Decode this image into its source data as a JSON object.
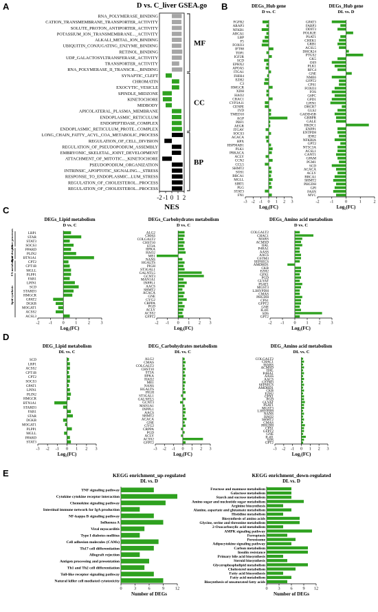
{
  "colors": {
    "green": "#2ea11f",
    "gray": "#a6a6a6",
    "black": "#000000",
    "axis": "#000000"
  },
  "panel_letters": {
    "A": "A",
    "B": "B",
    "C": "C",
    "D": "D",
    "E": "E"
  },
  "chart_data": [
    {
      "id": "A",
      "type": "bar",
      "orientation": "horizontal",
      "title": "D vs. C_liver GSEA.go",
      "xlabel": "NES",
      "xlim": [
        -2,
        2
      ],
      "xticks": [
        "-2",
        "-1",
        "0",
        "1",
        "2"
      ],
      "categories": [
        "RNA_POLYMERASE_BINDING",
        "CATION_TRANSMEMBRANE_TRANSPORTER_ACTIVITY",
        "SOLUTE_PROTON_ANTIPORTER_ACTIVITY",
        "POTASSIUM_ION_TRANSMEMBRANE..._ACTIVITY",
        "ALKALI_METAL_ION_BINDING",
        "UBIQUITIN_CONJUGATING_ENZYME_BINDING",
        "RETINOL_BINDING",
        "UDP_GALACTOSYLTRANSFERASE_ACTIVITY",
        "TRANSPORTER_ACTIVITY",
        "RNA_POLYMERASE_II_TRANSCR..._BINDING",
        "SYNAPTIC_CLEFT",
        "CHROMATIN",
        "EXOCYTIC_VESICLE",
        "SPINDLE_MIDZONE",
        "KINETOCHORE",
        "MIDBODY",
        "APICOLATERAL_PLASMA_MEMBRANE",
        "ENDOPLASMIC_RETICULUM",
        "ENDOPEPTIDASE_COMPLEX",
        "ENDOPLASMIC_RETICULUM_PROTE...COMPLEX",
        "LONG_CHAIN_FATTY_ACYL_COA_METABOLIC_PROCESS",
        "REGULATION_OF_CELL_DIVISION",
        "REGULATION_OF_PSEUDOPODIUM_ASSEMBLY",
        "EMBRYONIC_SKELETAL_JOINT_DEVELOPMENT",
        "ATTACHMENT_OF_MITOTIC..._KINETOCHORE",
        "PSEUDOPODIUM_ORGANIZATION",
        "INTRINSIC_APOPTOTIC_SIGNALING..._STRESS",
        "RESPONSE_TO_ENDOPLASMIC...LUM_STRESS",
        "REGULATION_OF_CHOLESTEROL...PROCESS",
        "REGULATION_OF_CHOLESTEROL...PROCESS"
      ],
      "values": [
        1.6,
        1.55,
        1.6,
        1.58,
        1.6,
        1.55,
        1.7,
        1.62,
        1.2,
        1.7,
        -1.0,
        1.2,
        1.2,
        -1.5,
        -1.45,
        -1.0,
        1.55,
        1.55,
        1.6,
        1.65,
        1.8,
        -1.2,
        1.55,
        1.5,
        -1.55,
        1.75,
        1.7,
        1.75,
        1.75,
        1.7
      ],
      "colors": [
        "gray",
        "gray",
        "gray",
        "gray",
        "gray",
        "gray",
        "gray",
        "gray",
        "gray",
        "gray",
        "green",
        "green",
        "green",
        "green",
        "green",
        "green",
        "green",
        "green",
        "green",
        "green",
        "black",
        "black",
        "black",
        "black",
        "black",
        "black",
        "black",
        "black",
        "black",
        "black"
      ],
      "groups": [
        {
          "label": "MF",
          "from": 0,
          "to": 9
        },
        {
          "label": "CC",
          "from": 10,
          "to": 19
        },
        {
          "label": "BP",
          "from": 20,
          "to": 29
        }
      ]
    },
    {
      "id": "B1",
      "type": "bar",
      "orientation": "horizontal",
      "title": "DEGs_Hub gene",
      "subtitle": "D vs. C",
      "xlabel": "Log₂(FC)",
      "xlim": [
        -3,
        3
      ],
      "xticks": [
        "-3",
        "-2",
        "-1",
        "0",
        "1",
        "2",
        "3"
      ],
      "categories": [
        "FGFR2",
        "ARAP3",
        "NFKB1",
        "ABCA1",
        "LBP",
        "F5",
        "FOXO3",
        "IFT88",
        "TOP1",
        "IGF2R",
        "SCD",
        "EPHX2",
        "APOA5",
        "ITGA1",
        "FHIH4",
        "EZH2",
        "C3",
        "HMGCR",
        "XDH",
        "HAO2",
        "CRAC1",
        "CYP3A11",
        "CENPE",
        "IYD",
        "TMED10",
        "AGP",
        "PBF1",
        "AEGR",
        "ITGAV",
        "SOCS3",
        "ACACA",
        "HPX",
        "HSP90AB1",
        "PLK1",
        "PRKACA",
        "ACLY",
        "CCN2",
        "CCL5",
        "SHMT2",
        "SOS1",
        "BRCA1",
        "MGLL",
        "SIRT1",
        "PLG",
        "STAT3",
        "FN1"
      ],
      "values": [
        -0.8,
        -0.3,
        -0.9,
        -0.3,
        -0.5,
        -0.8,
        -0.9,
        0.6,
        -0.3,
        0.4,
        -0.6,
        -0.3,
        -0.4,
        0.3,
        -0.2,
        -0.5,
        -0.6,
        0.5,
        -0.3,
        -0.3,
        0.5,
        -0.5,
        -0.5,
        0.3,
        0.3,
        2.4,
        0.2,
        0.2,
        -0.4,
        0.3,
        -0.4,
        -0.3,
        0.3,
        0.5,
        0.4,
        -0.4,
        0.5,
        -0.5,
        0.3,
        0.4,
        0.3,
        0.5,
        0.3,
        0.4,
        -0.5,
        0.4
      ]
    },
    {
      "id": "B2",
      "type": "bar",
      "orientation": "horizontal",
      "title": "DEGs_Hub gene",
      "subtitle": "DL vs. D",
      "xlabel": "Log₂(FC)",
      "xlim": [
        -2,
        2
      ],
      "xticks": [
        "-2",
        "-1",
        "0",
        "1",
        "2"
      ],
      "categories": [
        "GPAT3",
        "FABP3",
        "DDIT3",
        "POLR2E",
        "PSAT1",
        "CHEK1",
        "GRB1",
        "ACSL5",
        "DHCR24",
        "PTGS2",
        "GK5",
        "OS9",
        "PLK1",
        "RFC4",
        "GNE",
        "NME6",
        "GFPT2",
        "CPS1",
        "FOXO3",
        "FOS",
        "G6PC",
        "GPD1",
        "LPIN1",
        "DHCR7",
        "GLS2",
        "GADD45B",
        "GRBPR",
        "GALE",
        "HKDC1",
        "ENPP1",
        "ENTPD8",
        "IDH2",
        "NFKBIA",
        "GPT2",
        "NT5C3A",
        "ACSL1",
        "CANT1",
        "GPAM",
        "PGM1",
        "SCD",
        "ACACA",
        "ACLY",
        "BRCA1",
        "SHMT2",
        "PHGDH",
        "GPI",
        "FASN",
        "MYC"
      ],
      "values": [
        -1.0,
        -0.4,
        -0.6,
        0.5,
        -0.4,
        -0.5,
        -0.6,
        -0.5,
        0.2,
        1.2,
        -0.6,
        -1.0,
        -0.8,
        -0.6,
        0.4,
        -1.0,
        -0.5,
        -0.5,
        -0.8,
        -1.0,
        -0.8,
        -1.0,
        -1.1,
        -0.3,
        -0.6,
        -0.8,
        -0.7,
        -0.7,
        1.6,
        -0.6,
        -0.6,
        -0.5,
        -0.8,
        -0.4,
        -0.6,
        -0.6,
        -0.7,
        -0.6,
        -0.5,
        -1.0,
        -0.7,
        -0.6,
        -0.8,
        -0.9,
        -0.7,
        -0.8,
        -0.9,
        -0.7
      ]
    },
    {
      "id": "C1",
      "type": "bar",
      "orientation": "horizontal",
      "title": "DEGs_Lipid metabolism",
      "subtitle": "D vs. C",
      "xlabel": "Log₂(FC)",
      "xlim": [
        -2,
        3
      ],
      "xticks": [
        "-2",
        "-1",
        "0",
        "1",
        "2",
        "3"
      ],
      "categories": [
        "LRP1",
        "STAR",
        "STAT3",
        "SOCS3",
        "PPARD",
        "PLIN2",
        "BTN1A1",
        "CPT2",
        "CPT1B",
        "MGLL",
        "PLPP1",
        "FAR1",
        "LPIN1",
        "SCD",
        "STARD3",
        "HMGCR",
        "GPAT2",
        "DGKB",
        "MOGAT1",
        "ACSS2",
        "ACSL3"
      ],
      "values": [
        0.6,
        1.4,
        0.5,
        0.8,
        0.6,
        1.0,
        2.4,
        0.4,
        0.5,
        0.6,
        0.6,
        0.5,
        0.9,
        1.2,
        0.8,
        0.7,
        -0.8,
        -0.6,
        -0.4,
        -0.6,
        0.5
      ],
      "groups": [
        {
          "label": "other processes",
          "from": 0,
          "to": 3
        },
        {
          "label": "lipid droplet",
          "from": 4,
          "to": 6
        },
        {
          "label": "FA metabolism",
          "from": 7,
          "to": 9
        },
        {
          "label": "lipid synthesis",
          "from": 10,
          "to": 20
        }
      ]
    },
    {
      "id": "C2",
      "type": "bar",
      "orientation": "horizontal",
      "title": "DEGs_Carbohydrates metabolism",
      "subtitle": "D vs. C",
      "xlabel": "Log₂(FC)",
      "xlim": [
        -2,
        3
      ],
      "xticks": [
        "-2",
        "-1",
        "0",
        "1",
        "2",
        "3"
      ],
      "categories": [
        "ALG2",
        "CMAS",
        "COLGALT2",
        "CHST10",
        "ST3A",
        "IIPKA",
        "HAO2",
        "ME1",
        "NANS",
        "HGALTS",
        "PIGH",
        "ST3GAL1",
        "GALNTL5",
        "GCNT3",
        "MAN1A1",
        "INPPL1",
        "AACS",
        "SHMT2",
        "ACACA",
        "GNE",
        "GYG2",
        "CRPPA",
        "PGD",
        "ACLY",
        "ACSS2",
        "GFPT2"
      ],
      "values": [
        0.6,
        0.6,
        0.5,
        0.6,
        0.5,
        0.6,
        0.7,
        -2.0,
        0.4,
        0.6,
        0.5,
        0.6,
        2.2,
        2.4,
        0.5,
        0.8,
        0.6,
        0.4,
        0.6,
        0.5,
        0.8,
        0.4,
        0.6,
        0.5,
        0.4,
        0.5
      ]
    },
    {
      "id": "C3",
      "type": "bar",
      "orientation": "horizontal",
      "title": "DEGs_Amino acid metabolism",
      "subtitle": "D vs. C",
      "xlabel": "Log₂(FC)",
      "xlim": [
        -2,
        3
      ],
      "xticks": [
        "-2",
        "-1",
        "0",
        "1",
        "2",
        "3"
      ],
      "categories": [
        "COLGALT2",
        "CHAC1",
        "MARS",
        "ACMSD",
        "IIAL",
        "P4HA1",
        "AASS",
        "AACS",
        "GSTM3",
        "SEPSECS",
        "AMDHD1",
        "CKB",
        "EZH2",
        "GPX1",
        "PGD",
        "GLYAT",
        "PSAT1",
        "MGST3",
        "L3HYPDH",
        "CMAS",
        "PHGDH",
        "CPS1",
        "GFPT2",
        "GNE",
        "IL4I1",
        "SDS",
        "GPT2"
      ],
      "values": [
        0.4,
        1.5,
        0.6,
        0.5,
        0.6,
        0.4,
        0.4,
        0.5,
        0.5,
        0.4,
        -0.6,
        0.5,
        0.5,
        0.4,
        0.5,
        0.4,
        0.6,
        0.5,
        0.4,
        0.4,
        0.6,
        0.5,
        0.5,
        0.4,
        0.5,
        2.2,
        0.4
      ]
    },
    {
      "id": "D1",
      "type": "bar",
      "orientation": "horizontal",
      "title": "DEG_Lipid metabolism",
      "subtitle": "DL vs. C",
      "xlabel": "Log₂(FC)",
      "xlim": [
        -3,
        3
      ],
      "xticks": [
        "-3",
        "-2",
        "-1",
        "0",
        "1",
        "2",
        "3"
      ],
      "categories": [
        "SCD",
        "LRP1",
        "ACSS2",
        "CPT1B",
        "CPT2",
        "SOCS3",
        "GPAT1",
        "LPIN1",
        "PLIN2",
        "HMGCR",
        "BTN1A1",
        "STARD3",
        "FAR1",
        "STAR",
        "DGKB",
        "MOGAT1",
        "PLPP1",
        "MGLL",
        "PPARD",
        "STAT3"
      ],
      "values": [
        0.2,
        0.3,
        0.3,
        0.2,
        0.3,
        0.3,
        0.2,
        0.3,
        0.4,
        0.3,
        -1.3,
        -0.4,
        0.4,
        0.6,
        -0.4,
        -0.2,
        0.5,
        -0.3,
        0.3,
        0.4
      ]
    },
    {
      "id": "D2",
      "type": "bar",
      "orientation": "horizontal",
      "title": "DEG_Carbohydrates metabolism",
      "subtitle": "DL vs. C",
      "xlabel": "Log₂(FC)",
      "xlim": [
        -3,
        3
      ],
      "xticks": [
        "-3",
        "-2",
        "-1",
        "0",
        "1",
        "2",
        "3"
      ],
      "categories": [
        "ALG2",
        "CMAS",
        "COLGALT2",
        "CHST10",
        "ST3A",
        "IIPKA",
        "HAO2",
        "ME1",
        "NANS",
        "HGALTS",
        "PIGH",
        "ST3GAL1",
        "GALNTL5",
        "GCNT3",
        "MAN1A1",
        "INPPL1",
        "AACS",
        "SHMT2",
        "ACACA",
        "GNE",
        "GYG2",
        "CRPPA",
        "PGD",
        "ACLY",
        "ACSS2",
        "GFPT2"
      ],
      "values": [
        0.2,
        0.3,
        0.2,
        0.3,
        0.2,
        0.3,
        0.2,
        0.3,
        0.2,
        0.2,
        0.3,
        -0.2,
        0.3,
        -0.3,
        0.2,
        0.3,
        0.3,
        0.2,
        0.4,
        0.2,
        0.3,
        -0.2,
        0.2,
        -0.2,
        2.2,
        0.3
      ]
    },
    {
      "id": "D3",
      "type": "bar",
      "orientation": "horizontal",
      "title": "DEG_Amino acid metabolism",
      "subtitle": "DL vs. C",
      "xlabel": "Log₂(FC)",
      "xlim": [
        -3,
        3
      ],
      "xticks": [
        "-3",
        "-2",
        "-1",
        "0",
        "1",
        "2",
        "3"
      ],
      "categories": [
        "COLGALT2",
        "CHAC1",
        "MARS",
        "ACMSD",
        "IIAL",
        "P4HA1",
        "AASS",
        "AACS",
        "GSTM3",
        "SEPSECS",
        "AMDHD1",
        "CKB",
        "EZH2",
        "GPX1",
        "PGD",
        "GLYAT",
        "PSAT1",
        "MGST3",
        "L3HYPDH",
        "NANS",
        "HAO2",
        "SHMT2",
        "CMAS",
        "PHGDH",
        "CPS1",
        "GFPT2",
        "GNE",
        "IL4I1",
        "SDS",
        "GPT2"
      ],
      "values": [
        0.2,
        0.3,
        0.2,
        0.3,
        0.2,
        0.3,
        0.2,
        0.3,
        0.2,
        0.3,
        0.2,
        0.3,
        0.2,
        0.3,
        0.3,
        0.4,
        0.3,
        0.3,
        0.2,
        0.3,
        0.2,
        0.3,
        0.2,
        0.4,
        0.3,
        0.3,
        0.2,
        0.5,
        0.3,
        0.2
      ]
    },
    {
      "id": "E1",
      "type": "bar",
      "orientation": "horizontal",
      "title": "KEGG enrichment_up-regulated",
      "subtitle": "DL vs. D",
      "xlabel": "Number of DEGs",
      "xlim": [
        0,
        12
      ],
      "xticks": [
        "0",
        "3",
        "6",
        "9",
        "12"
      ],
      "categories": [
        "TNF signaling pathway",
        "Cytokine cytokine receptor interaction",
        "Chemokine signaling pathway",
        "Intestinal immune network for IgA production",
        "NF-kappa B signaling pathway",
        "Influenza A",
        "Viral myocarditis",
        "Type I diabetes mellitus",
        "Cell adhesion molecules (CAMs)",
        "Th17 cell differentiation",
        "Allograft rejection",
        "Antigen processing and presentation",
        "Th1 and Th2 cell differentiation",
        "Toll-like receptor signaling pathway",
        "Natural killer cell mediated cytotoxicity"
      ],
      "values": [
        7,
        12,
        9.5,
        4,
        7,
        9,
        5,
        4,
        8,
        7,
        4,
        6,
        5,
        7,
        9
      ]
    },
    {
      "id": "E2",
      "type": "bar",
      "orientation": "horizontal",
      "title": "KEGG enrichment_down-regulated",
      "subtitle": "DL vs. D",
      "xlabel": "Number of DEGs",
      "xlim": [
        0,
        12
      ],
      "xticks": [
        "0",
        "3",
        "6",
        "9",
        "12"
      ],
      "categories": [
        "Fructose and mannose metabolism",
        "Galactose metabolism",
        "Starch and sucrose metabolism",
        "Amino sugar and nucleotide sugar metabolism",
        "Arginine biosynthesis",
        "Alanine, aspartate and glutamate metabolism",
        "Histidine metabolism",
        "Biosynthesis of amino acids",
        "Glycine, serine and threonine metabolism",
        "2-Oxocarboxylic acid metabolism",
        "AMPK signaling pathway",
        "Ferroptosis",
        "Peroxisome",
        "Adipocytokine signaling pathway",
        "Carbon metabolism",
        "Insulin resistance",
        "Primary bile acid biosynthesis",
        "Steroid biosynthesis",
        "Glycerophospholipid metabolism",
        "Cholesterol metabolism",
        "Fatty acid biosynthesis",
        "Fatty acid metabolism",
        "Biosynthesis of unsaturated fatty acids"
      ],
      "values": [
        6,
        6,
        6,
        9,
        4,
        6,
        4,
        8,
        8,
        4,
        11,
        5,
        7,
        6,
        10,
        10,
        4,
        5,
        10,
        7,
        4,
        6,
        5
      ]
    }
  ]
}
